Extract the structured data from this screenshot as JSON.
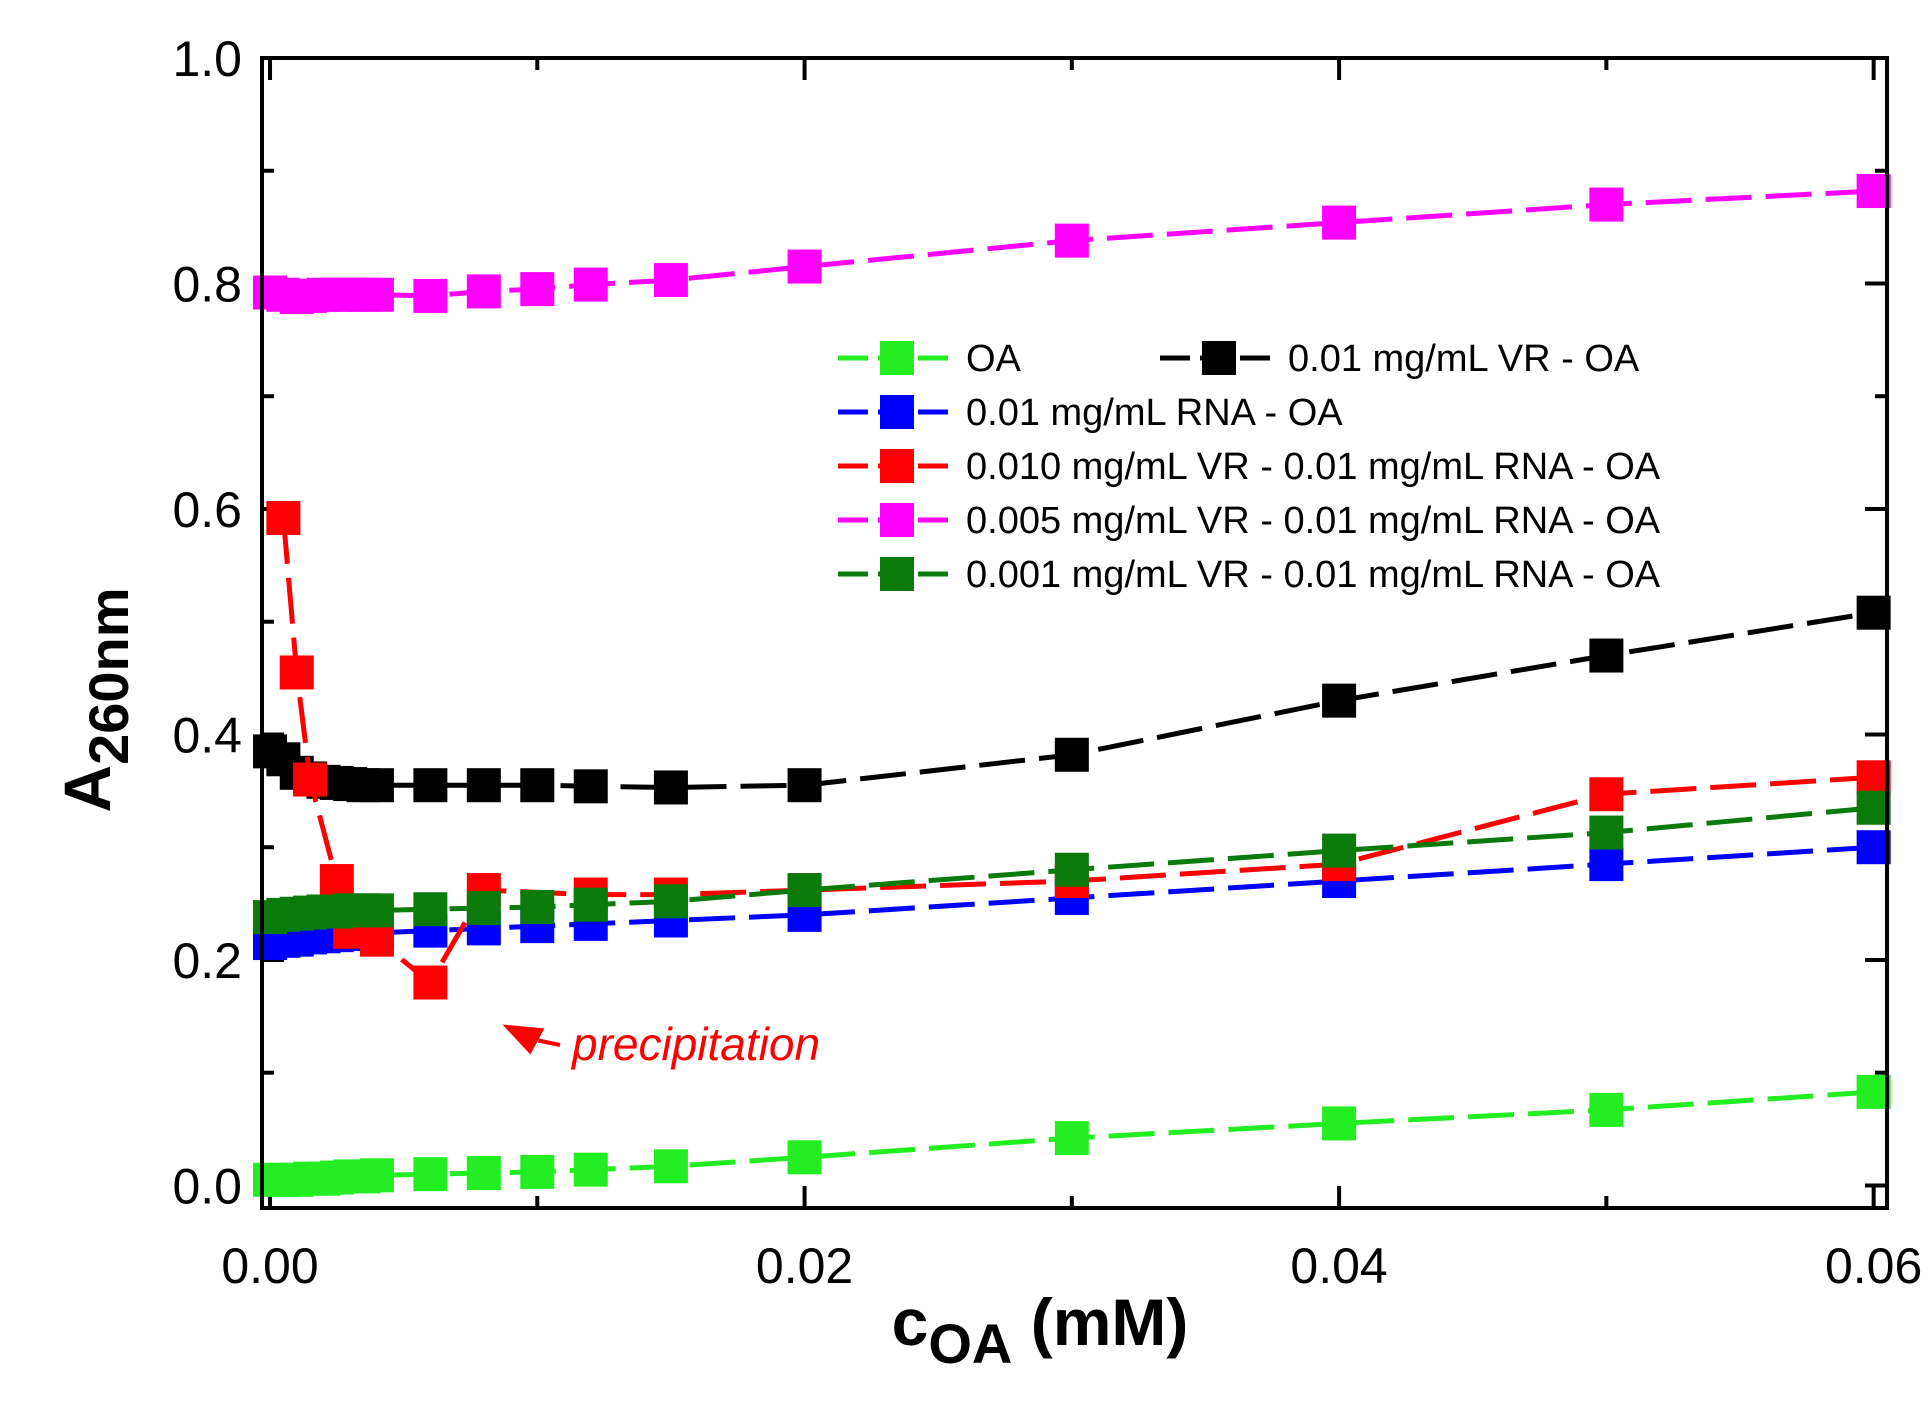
{
  "chart_data": {
    "type": "line",
    "title": "",
    "xlabel": {
      "main": "c",
      "sub": "OA",
      "unit": "(mM)"
    },
    "ylabel": {
      "main": "A",
      "sub": "260nm"
    },
    "xlim": [
      -0.0003,
      0.0605
    ],
    "ylim": [
      -0.02,
      1.0
    ],
    "x_ticks": [
      0.0,
      0.02,
      0.04,
      0.06
    ],
    "x_tick_labels": [
      "0.00",
      "0.02",
      "0.04",
      "0.06"
    ],
    "y_ticks": [
      0.0,
      0.2,
      0.4,
      0.6,
      0.8,
      1.0
    ],
    "y_tick_labels": [
      "0.0",
      "0.2",
      "0.4",
      "0.6",
      "0.8",
      "1.0"
    ],
    "series": [
      {
        "name": "OA",
        "color": "#22ee22",
        "x": [
          0.0,
          0.0005,
          0.001,
          0.0015,
          0.002,
          0.0025,
          0.003,
          0.0035,
          0.004,
          0.006,
          0.008,
          0.01,
          0.012,
          0.015,
          0.02,
          0.03,
          0.04,
          0.05,
          0.06
        ],
        "y": [
          0.005,
          0.005,
          0.005,
          0.006,
          0.006,
          0.007,
          0.008,
          0.008,
          0.009,
          0.01,
          0.011,
          0.012,
          0.014,
          0.017,
          0.025,
          0.042,
          0.055,
          0.067,
          0.083
        ]
      },
      {
        "name": "0.01 mg/mL VR - OA",
        "color": "#000000",
        "x": [
          0.0,
          0.0005,
          0.001,
          0.0015,
          0.002,
          0.0025,
          0.003,
          0.0035,
          0.004,
          0.006,
          0.008,
          0.01,
          0.012,
          0.015,
          0.02,
          0.03,
          0.04,
          0.05,
          0.06
        ],
        "y": [
          0.385,
          0.378,
          0.366,
          0.361,
          0.358,
          0.357,
          0.356,
          0.355,
          0.355,
          0.355,
          0.355,
          0.355,
          0.354,
          0.353,
          0.355,
          0.382,
          0.43,
          0.47,
          0.508
        ]
      },
      {
        "name": "0.01 mg/mL RNA - OA",
        "color": "#0000ff",
        "x": [
          0.0,
          0.0005,
          0.001,
          0.0015,
          0.002,
          0.0025,
          0.003,
          0.0035,
          0.004,
          0.006,
          0.008,
          0.01,
          0.012,
          0.015,
          0.02,
          0.03,
          0.04,
          0.05,
          0.06
        ],
        "y": [
          0.215,
          0.217,
          0.218,
          0.22,
          0.221,
          0.222,
          0.223,
          0.224,
          0.224,
          0.226,
          0.228,
          0.23,
          0.232,
          0.235,
          0.24,
          0.255,
          0.27,
          0.285,
          0.3
        ]
      },
      {
        "name": "0.010 mg/mL VR - 0.01 mg/mL RNA - OA",
        "color": "#ff0000",
        "x": [
          0.0005,
          0.001,
          0.0015,
          0.0025,
          0.003,
          0.004,
          0.006,
          0.008,
          0.012,
          0.015,
          0.02,
          0.03,
          0.04,
          0.05,
          0.06
        ],
        "y": [
          0.592,
          0.455,
          0.36,
          0.27,
          0.225,
          0.218,
          0.18,
          0.262,
          0.258,
          0.258,
          0.262,
          0.27,
          0.285,
          0.347,
          0.362
        ]
      },
      {
        "name": "0.005 mg/mL VR - 0.01 mg/mL RNA - OA",
        "color": "#ff00ff",
        "x": [
          0.0,
          0.0005,
          0.001,
          0.0015,
          0.002,
          0.0025,
          0.003,
          0.0035,
          0.004,
          0.006,
          0.008,
          0.01,
          0.012,
          0.015,
          0.02,
          0.03,
          0.04,
          0.05,
          0.06
        ],
        "y": [
          0.792,
          0.79,
          0.788,
          0.789,
          0.79,
          0.79,
          0.79,
          0.79,
          0.79,
          0.789,
          0.793,
          0.795,
          0.799,
          0.803,
          0.815,
          0.838,
          0.854,
          0.87,
          0.882
        ]
      },
      {
        "name": "0.001 mg/mL VR - 0.01 mg/mL RNA - OA",
        "color": "#0a7a0a",
        "x": [
          0.0,
          0.0005,
          0.001,
          0.0015,
          0.002,
          0.0025,
          0.003,
          0.0035,
          0.004,
          0.006,
          0.008,
          0.01,
          0.012,
          0.015,
          0.02,
          0.03,
          0.04,
          0.05,
          0.06
        ],
        "y": [
          0.238,
          0.24,
          0.241,
          0.242,
          0.243,
          0.243,
          0.244,
          0.244,
          0.244,
          0.245,
          0.246,
          0.247,
          0.249,
          0.252,
          0.262,
          0.28,
          0.297,
          0.313,
          0.335
        ]
      }
    ],
    "legend": {
      "placement": "top-right",
      "rows": [
        [
          "OA",
          "0.01 mg/mL VR - OA"
        ],
        [
          "0.01 mg/mL RNA - OA"
        ],
        [
          "0.010 mg/mL VR - 0.01 mg/mL RNA - OA"
        ],
        [
          "0.005 mg/mL VR - 0.01 mg/mL RNA - OA"
        ],
        [
          "0.001 mg/mL VR - 0.01 mg/mL RNA - OA"
        ]
      ]
    },
    "annotations": [
      {
        "text": "precipitation",
        "color": "#ff0000",
        "points_to": {
          "x": 0.006,
          "y": 0.18
        }
      }
    ]
  }
}
